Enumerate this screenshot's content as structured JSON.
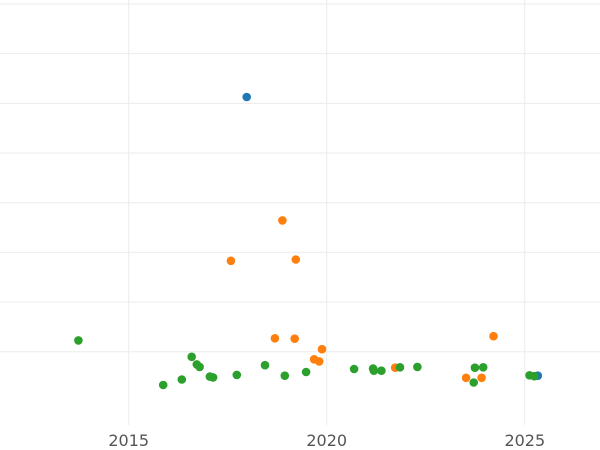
{
  "chart_data": {
    "type": "scatter",
    "title": "",
    "xlabel": "",
    "ylabel": "",
    "x_ticks": [
      2015,
      2020,
      2025
    ],
    "x_tick_labels": [
      "2015",
      "2020",
      "2025"
    ],
    "xlim": [
      2011.75,
      2026.9
    ],
    "ylim": [
      0,
      100
    ],
    "y_gridlines": [
      17.4,
      29.2,
      41,
      52.8,
      64.6,
      76.4,
      88.2,
      100
    ],
    "grid": true,
    "legend": "none",
    "series": [
      {
        "color": "#1f77b4",
        "points": [
          {
            "x": 2017.98,
            "y": 77.9
          },
          {
            "x": 2025.33,
            "y": 11.7
          }
        ]
      },
      {
        "color": "#ff7f0e",
        "points": [
          {
            "x": 2017.58,
            "y": 39.0
          },
          {
            "x": 2018.88,
            "y": 48.6
          },
          {
            "x": 2019.22,
            "y": 39.3
          },
          {
            "x": 2018.69,
            "y": 20.6
          },
          {
            "x": 2019.19,
            "y": 20.5
          },
          {
            "x": 2019.88,
            "y": 18.0
          },
          {
            "x": 2019.68,
            "y": 15.6
          },
          {
            "x": 2019.81,
            "y": 15.1
          },
          {
            "x": 2021.73,
            "y": 13.6
          },
          {
            "x": 2023.52,
            "y": 11.2
          },
          {
            "x": 2023.91,
            "y": 11.2
          },
          {
            "x": 2024.21,
            "y": 21.1
          }
        ]
      },
      {
        "color": "#2ca02c",
        "points": [
          {
            "x": 2013.73,
            "y": 20.1
          },
          {
            "x": 2015.87,
            "y": 9.5
          },
          {
            "x": 2016.34,
            "y": 10.8
          },
          {
            "x": 2016.59,
            "y": 16.2
          },
          {
            "x": 2016.72,
            "y": 14.4
          },
          {
            "x": 2016.79,
            "y": 13.8
          },
          {
            "x": 2017.05,
            "y": 11.5
          },
          {
            "x": 2017.13,
            "y": 11.3
          },
          {
            "x": 2017.73,
            "y": 11.9
          },
          {
            "x": 2018.44,
            "y": 14.2
          },
          {
            "x": 2018.94,
            "y": 11.7
          },
          {
            "x": 2019.48,
            "y": 12.6
          },
          {
            "x": 2020.69,
            "y": 13.3
          },
          {
            "x": 2021.17,
            "y": 13.4
          },
          {
            "x": 2021.19,
            "y": 12.9
          },
          {
            "x": 2021.38,
            "y": 12.9
          },
          {
            "x": 2021.85,
            "y": 13.7
          },
          {
            "x": 2022.29,
            "y": 13.8
          },
          {
            "x": 2023.74,
            "y": 13.6
          },
          {
            "x": 2023.95,
            "y": 13.7
          },
          {
            "x": 2023.71,
            "y": 10.1
          },
          {
            "x": 2025.12,
            "y": 11.8
          },
          {
            "x": 2025.24,
            "y": 11.6
          }
        ]
      }
    ]
  }
}
